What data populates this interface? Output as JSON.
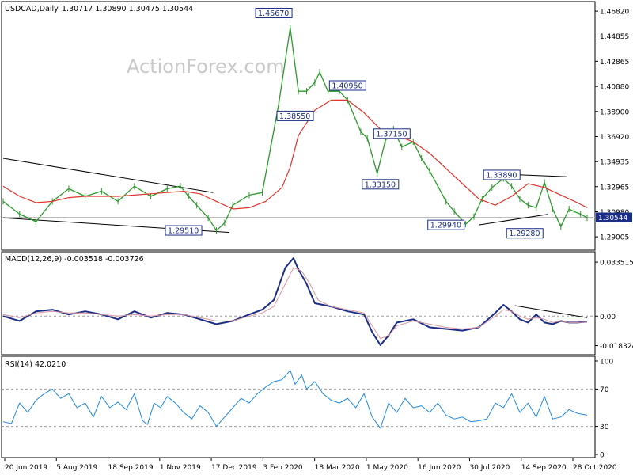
{
  "header": {
    "symbol": "USDCAD,Daily",
    "ohlc": "1.30717 1.30890 1.30475 1.30544"
  },
  "watermark": "ActionForex.com",
  "colors": {
    "price": "#2b9a2b",
    "ma": "#e0352b",
    "macd_main": "#1b2d86",
    "macd_signal": "#d896a0",
    "rsi": "#1e88e5",
    "trendline": "#000000",
    "label_border": "#1b2d86",
    "label_text": "#1b2d86",
    "badge_bg": "#1b2d86"
  },
  "chart_data": [
    {
      "type": "line",
      "panel": "price",
      "title": "USDCAD,Daily",
      "y_ticks": [
        "1.46820",
        "1.44855",
        "1.42865",
        "1.40880",
        "1.38900",
        "1.36920",
        "1.34935",
        "1.32965",
        "1.30980",
        "1.29005"
      ],
      "ylim": [
        1.282,
        1.472
      ],
      "x_ticks": [
        "20 Jun 2019",
        "5 Aug 2019",
        "18 Sep 2019",
        "1 Nov 2019",
        "17 Dec 2019",
        "3 Feb 2020",
        "18 Mar 2020",
        "1 May 2020",
        "16 Jun 2020",
        "30 Jul 2020",
        "14 Sep 2020",
        "28 Oct 2020"
      ],
      "x_range": [
        0,
        356
      ],
      "current_price": "1.30544",
      "series": [
        {
          "key": "price",
          "x": [
            0,
            10,
            20,
            30,
            40,
            50,
            60,
            70,
            80,
            90,
            100,
            108,
            113,
            118,
            125,
            130,
            135,
            140,
            150,
            158,
            163,
            168,
            175,
            180,
            185,
            190,
            193,
            198,
            205,
            210,
            218,
            222,
            228,
            233,
            238,
            243,
            250,
            255,
            260,
            265,
            270,
            275,
            282,
            287,
            292,
            298,
            305,
            310,
            315,
            320,
            325,
            330,
            335,
            340,
            345,
            348,
            352,
            356
          ],
          "y": [
            1.318,
            1.308,
            1.302,
            1.318,
            1.328,
            1.322,
            1.326,
            1.318,
            1.33,
            1.322,
            1.328,
            1.33,
            1.322,
            1.315,
            1.305,
            1.295,
            1.301,
            1.315,
            1.323,
            1.325,
            1.36,
            1.395,
            1.455,
            1.405,
            1.405,
            1.412,
            1.42,
            1.405,
            1.405,
            1.398,
            1.373,
            1.368,
            1.34,
            1.366,
            1.375,
            1.361,
            1.365,
            1.352,
            1.342,
            1.33,
            1.318,
            1.31,
            1.3,
            1.306,
            1.32,
            1.329,
            1.336,
            1.33,
            1.32,
            1.315,
            1.313,
            1.333,
            1.312,
            1.298,
            1.312,
            1.31,
            1.308,
            1.305
          ]
        },
        {
          "key": "ma",
          "x": [
            0,
            10,
            20,
            30,
            40,
            50,
            60,
            70,
            80,
            90,
            100,
            110,
            120,
            130,
            140,
            150,
            160,
            170,
            175,
            180,
            190,
            200,
            210,
            220,
            230,
            240,
            250,
            260,
            270,
            280,
            290,
            300,
            310,
            320,
            330,
            340,
            350,
            356
          ],
          "y": [
            1.33,
            1.322,
            1.317,
            1.318,
            1.321,
            1.322,
            1.322,
            1.322,
            1.323,
            1.324,
            1.325,
            1.326,
            1.324,
            1.318,
            1.312,
            1.313,
            1.318,
            1.329,
            1.345,
            1.37,
            1.39,
            1.398,
            1.398,
            1.388,
            1.375,
            1.37,
            1.365,
            1.356,
            1.344,
            1.332,
            1.32,
            1.315,
            1.322,
            1.332,
            1.329,
            1.323,
            1.317,
            1.313
          ]
        }
      ],
      "annotations": [
        {
          "label": "1.46670",
          "x": 165,
          "y": 1.4667
        },
        {
          "label": "1.40950",
          "x": 210,
          "y": 1.4095
        },
        {
          "label": "1.38550",
          "x": 178,
          "y": 1.3855
        },
        {
          "label": "1.37150",
          "x": 237,
          "y": 1.3715
        },
        {
          "label": "1.33150",
          "x": 230,
          "y": 1.3315
        },
        {
          "label": "1.33890",
          "x": 304,
          "y": 1.3389
        },
        {
          "label": "1.29940",
          "x": 270,
          "y": 1.2994
        },
        {
          "label": "1.29510",
          "x": 110,
          "y": 1.2951
        },
        {
          "label": "1.29280",
          "x": 318,
          "y": 1.2928
        }
      ],
      "trendlines": [
        {
          "x": [
            0,
            128
          ],
          "y": [
            1.352,
            1.325
          ]
        },
        {
          "x": [
            0,
            138
          ],
          "y": [
            1.305,
            1.2935
          ]
        },
        {
          "x": [
            290,
            332
          ],
          "y": [
            1.2994,
            1.3078
          ]
        },
        {
          "x": [
            305,
            344
          ],
          "y": [
            1.3395,
            1.3375
          ]
        }
      ]
    },
    {
      "type": "line",
      "panel": "macd",
      "title": "MACD(12,26,9) -0.003518 -0.003726",
      "y_ticks": [
        "0.033515",
        "0.00",
        "-0.018324"
      ],
      "ylim": [
        -0.022,
        0.037
      ],
      "zero_line": 0.0,
      "series": [
        {
          "key": "macd_main",
          "x": [
            0,
            10,
            20,
            30,
            40,
            50,
            60,
            70,
            80,
            90,
            100,
            110,
            120,
            130,
            140,
            150,
            158,
            165,
            172,
            177,
            180,
            185,
            190,
            200,
            210,
            220,
            225,
            230,
            235,
            240,
            250,
            260,
            270,
            280,
            290,
            300,
            305,
            310,
            315,
            320,
            325,
            330,
            335,
            340,
            345,
            350,
            356
          ],
          "y": [
            0.0,
            -0.003,
            0.003,
            0.004,
            0.001,
            0.003,
            0.001,
            -0.002,
            0.003,
            -0.001,
            0.002,
            0.001,
            -0.002,
            -0.005,
            -0.003,
            0.001,
            0.004,
            0.01,
            0.03,
            0.036,
            0.029,
            0.02,
            0.008,
            0.006,
            0.003,
            0.001,
            -0.01,
            -0.018,
            -0.012,
            -0.004,
            -0.002,
            -0.007,
            -0.008,
            -0.009,
            -0.007,
            0.002,
            0.007,
            0.003,
            -0.002,
            -0.004,
            0.001,
            -0.004,
            -0.005,
            -0.003,
            -0.004,
            -0.004,
            -0.0035
          ]
        },
        {
          "key": "macd_signal",
          "x": [
            0,
            10,
            20,
            30,
            40,
            50,
            60,
            70,
            80,
            90,
            100,
            110,
            120,
            130,
            140,
            150,
            158,
            165,
            172,
            177,
            182,
            187,
            192,
            200,
            210,
            220,
            225,
            230,
            235,
            240,
            250,
            260,
            270,
            280,
            290,
            300,
            305,
            310,
            315,
            320,
            325,
            330,
            335,
            340,
            345,
            350,
            356
          ],
          "y": [
            0.001,
            -0.001,
            0.002,
            0.003,
            0.002,
            0.002,
            0.001,
            0.0,
            0.001,
            0.0,
            0.001,
            0.001,
            -0.001,
            -0.003,
            -0.003,
            0.0,
            0.002,
            0.006,
            0.02,
            0.03,
            0.028,
            0.02,
            0.01,
            0.006,
            0.004,
            0.002,
            -0.006,
            -0.014,
            -0.012,
            -0.006,
            -0.003,
            -0.005,
            -0.007,
            -0.008,
            -0.007,
            0.0,
            0.004,
            0.003,
            0.0,
            -0.002,
            -0.001,
            -0.002,
            -0.004,
            -0.003,
            -0.004,
            -0.004,
            -0.0037
          ]
        }
      ],
      "trendlines": [
        {
          "x": [
            312,
            356
          ],
          "y": [
            0.0065,
            -0.001
          ]
        }
      ]
    },
    {
      "type": "line",
      "panel": "rsi",
      "title": "RSI(14) 42.0210",
      "y_ticks": [
        "100",
        "70",
        "30",
        "0"
      ],
      "ylim": [
        0,
        100
      ],
      "levels": [
        70,
        30
      ],
      "series": [
        {
          "key": "rsi",
          "x": [
            0,
            5,
            10,
            15,
            20,
            25,
            30,
            35,
            40,
            45,
            50,
            55,
            60,
            65,
            70,
            75,
            80,
            85,
            88,
            92,
            96,
            100,
            105,
            110,
            115,
            120,
            125,
            130,
            135,
            140,
            145,
            150,
            155,
            160,
            165,
            170,
            175,
            178,
            182,
            185,
            190,
            195,
            200,
            205,
            210,
            215,
            220,
            225,
            230,
            235,
            240,
            245,
            250,
            255,
            260,
            265,
            270,
            275,
            280,
            285,
            290,
            295,
            300,
            305,
            310,
            315,
            320,
            325,
            330,
            335,
            340,
            345,
            350,
            356
          ],
          "y": [
            35,
            33,
            55,
            45,
            58,
            65,
            70,
            60,
            65,
            50,
            55,
            40,
            62,
            50,
            56,
            48,
            65,
            36,
            32,
            55,
            50,
            62,
            55,
            45,
            38,
            52,
            45,
            30,
            40,
            50,
            60,
            55,
            65,
            72,
            78,
            80,
            90,
            75,
            85,
            70,
            78,
            65,
            58,
            55,
            60,
            50,
            65,
            40,
            28,
            55,
            45,
            60,
            50,
            52,
            45,
            55,
            42,
            38,
            40,
            35,
            36,
            38,
            55,
            50,
            65,
            45,
            55,
            40,
            62,
            38,
            40,
            48,
            44,
            42
          ]
        }
      ]
    }
  ]
}
